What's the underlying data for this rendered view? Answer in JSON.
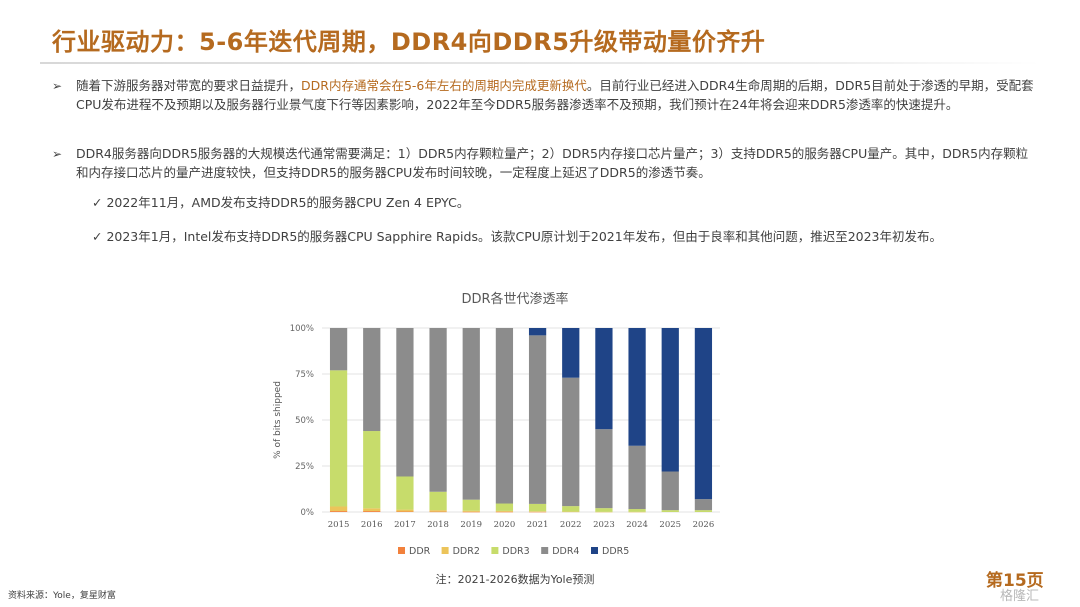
{
  "slide": {
    "title": "行业驱动力：5-6年迭代周期，DDR4向DDR5升级带动量价齐升",
    "bullet_symbol": "➢",
    "p1_a": "随着下游服务器对带宽的要求日益提升，",
    "p1_highlight": "DDR内存通常会在5-6年左右的周期内完成更新换代",
    "p1_b": "。目前行业已经进入DDR4生命周期的后期，DDR5目前处于渗透的早期，受配套CPU发布进程不及预期以及服务器行业景气度下行等因素影响，2022年至今DDR5服务器渗透率不及预期，我们预计在24年将会迎来DDR5渗透率的快速提升。",
    "p2": "DDR4服务器向DDR5服务器的大规模迭代通常需要满足：1）DDR5内存颗粒量产；2）DDR5内存接口芯片量产；3）支持DDR5的服务器CPU量产。其中，DDR5内存颗粒和内存接口芯片的量产进度较快，但支持DDR5的服务器CPU发布时间较晚，一定程度上延迟了DDR5的渗透节奏。",
    "check1": "✓ 2022年11月，AMD发布支持DDR5的服务器CPU Zen 4 EPYC。",
    "check2": "✓ 2023年1月，Intel发布支持DDR5的服务器CPU Sapphire Rapids。该款CPU原计划于2021年发布，但由于良率和其他问题，推迟至2023年初发布。",
    "footnote": "注：2021-2026数据为Yole预测",
    "source": "资料来源：Yole，复星财富",
    "page_number": "第15页",
    "watermark": "格隆汇"
  },
  "chart_data": {
    "type": "bar",
    "stacked": true,
    "title": "DDR各世代渗透率",
    "ylabel": "% of bits shipped",
    "xlabel": "",
    "ylim": [
      0,
      100
    ],
    "yticks": [
      "0%",
      "25%",
      "50%",
      "75%",
      "100%"
    ],
    "categories": [
      "2015",
      "2016",
      "2017",
      "2018",
      "2019",
      "2020",
      "2021",
      "2022",
      "2023",
      "2024",
      "2025",
      "2026"
    ],
    "series": [
      {
        "name": "DDR",
        "color": "#f2813c",
        "values": [
          0.5,
          0.5,
          0.3,
          0.2,
          0.1,
          0.1,
          0.1,
          0,
          0,
          0,
          0,
          0
        ]
      },
      {
        "name": "DDR2",
        "color": "#ecc45a",
        "values": [
          2.5,
          1.5,
          1.0,
          0.8,
          0.6,
          0.5,
          0.3,
          0.2,
          0.1,
          0.1,
          0,
          0
        ]
      },
      {
        "name": "DDR3",
        "color": "#c7dc6b",
        "values": [
          74,
          42,
          18,
          10,
          6,
          4,
          4,
          3,
          2,
          1.5,
          1,
          1
        ]
      },
      {
        "name": "DDR4",
        "color": "#8c8c8c",
        "values": [
          23,
          56,
          80.7,
          89,
          93.3,
          95.4,
          91.6,
          69.8,
          42.9,
          34.4,
          21,
          6
        ]
      },
      {
        "name": "DDR5",
        "color": "#1f4487",
        "values": [
          0,
          0,
          0,
          0,
          0,
          0,
          4,
          27,
          55,
          64,
          78,
          93
        ]
      }
    ],
    "legend_position": "bottom",
    "grid": true
  }
}
